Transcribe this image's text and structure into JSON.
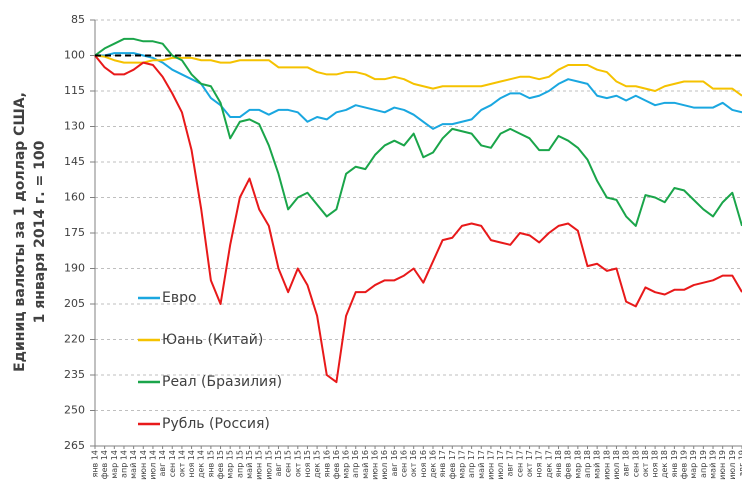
{
  "chart_data": {
    "type": "line",
    "ylabel": [
      "Единиц валюты за 1 доллар США,",
      "1 января 2014 г. = 100"
    ],
    "categories": [
      "янв 14",
      "фев 14",
      "мар 14",
      "апр 14",
      "май 14",
      "июн 14",
      "июл 14",
      "авг 14",
      "сен 14",
      "окт 14",
      "ноя 14",
      "дек 14",
      "янв 15",
      "фев 15",
      "мар 15",
      "апр 15",
      "май 15",
      "июн 15",
      "июл 15",
      "авг 15",
      "сен 15",
      "окт 15",
      "ноя 15",
      "дек 15",
      "янв 16",
      "фев 16",
      "мар 16",
      "апр 16",
      "май 16",
      "июн 16",
      "июл 16",
      "авг 16",
      "сен 16",
      "окт 16",
      "ноя 16",
      "дек 16",
      "янв 17",
      "фев 17",
      "мар 17",
      "апр 17",
      "май 17",
      "июн 17",
      "июл 17",
      "авг 17",
      "сен 17",
      "окт 17",
      "ноя 17",
      "дек 17",
      "янв 18",
      "фев 18",
      "мар 18",
      "апр 18",
      "май 18",
      "июн 18",
      "июл 18",
      "авг 18",
      "сен 18",
      "окт 18",
      "ноя 18",
      "дек 18",
      "янв 19",
      "фев 19",
      "мар 19",
      "апр 19",
      "май 19",
      "июн 19",
      "июл 19",
      "авг 19"
    ],
    "series": [
      {
        "name": "Евро",
        "color": "#1aa7e0",
        "values": [
          100,
          100,
          99,
          99,
          99,
          100,
          101,
          103,
          106,
          108,
          110,
          112,
          118,
          121,
          126,
          126,
          123,
          123,
          125,
          123,
          123,
          124,
          128,
          126,
          127,
          124,
          123,
          121,
          122,
          123,
          124,
          122,
          123,
          125,
          128,
          131,
          129,
          129,
          128,
          127,
          123,
          121,
          118,
          116,
          116,
          118,
          117,
          115,
          112,
          110,
          111,
          112,
          117,
          118,
          117,
          119,
          117,
          119,
          121,
          120,
          120,
          121,
          122,
          122,
          122,
          120,
          123,
          124
        ]
      },
      {
        "name": "Юань (Китай)",
        "color": "#f5c200",
        "values": [
          100,
          100.5,
          102,
          103,
          103,
          103,
          102,
          102,
          101,
          101,
          101,
          102,
          102,
          103,
          103,
          102,
          102,
          102,
          102,
          105,
          105,
          105,
          105,
          107,
          108,
          108,
          107,
          107,
          108,
          110,
          110,
          109,
          110,
          112,
          113,
          114,
          113,
          113,
          113,
          113,
          113,
          112,
          111,
          110,
          109,
          109,
          110,
          109,
          106,
          104,
          104,
          104,
          106,
          107,
          111,
          113,
          113,
          114,
          115,
          113,
          112,
          111,
          111,
          111,
          114,
          114,
          114,
          117
        ]
      },
      {
        "name": "Реал (Бразилия)",
        "color": "#1aa54a",
        "values": [
          100,
          97,
          95,
          93,
          93,
          94,
          94,
          95,
          100,
          102,
          108,
          112,
          113,
          120,
          135,
          128,
          127,
          129,
          138,
          150,
          165,
          160,
          158,
          163,
          168,
          165,
          150,
          147,
          148,
          142,
          138,
          136,
          138,
          133,
          143,
          141,
          135,
          131,
          132,
          133,
          138,
          139,
          133,
          131,
          133,
          135,
          140,
          140,
          134,
          136,
          139,
          144,
          153,
          160,
          161,
          168,
          172,
          159,
          160,
          162,
          156,
          157,
          161,
          165,
          168,
          162,
          158,
          172
        ]
      },
      {
        "name": "Рубль (Россия)",
        "color": "#e8191a",
        "values": [
          100,
          105,
          108,
          108,
          106,
          103,
          104,
          109,
          116,
          124,
          140,
          165,
          195,
          205,
          180,
          160,
          152,
          165,
          172,
          190,
          200,
          190,
          197,
          210,
          235,
          238,
          210,
          200,
          200,
          197,
          195,
          195,
          193,
          190,
          196,
          187,
          178,
          177,
          172,
          171,
          172,
          178,
          179,
          180,
          175,
          176,
          179,
          175,
          172,
          171,
          174,
          189,
          188,
          191,
          190,
          204,
          206,
          198,
          200,
          201,
          199,
          199,
          197,
          196,
          195,
          193,
          193,
          200
        ]
      }
    ],
    "baseline": 100,
    "ylim": [
      85,
      265
    ],
    "yticks": [
      85,
      100,
      115,
      130,
      145,
      160,
      175,
      190,
      205,
      220,
      235,
      250,
      265
    ],
    "inverted_y": true,
    "grid": true,
    "legend": "lower left"
  }
}
